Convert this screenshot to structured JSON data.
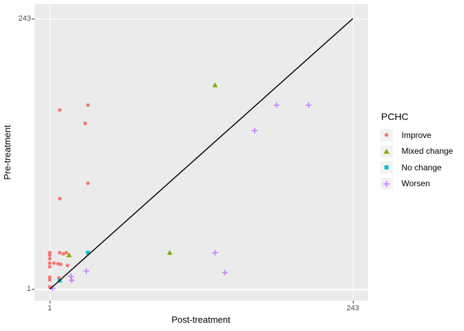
{
  "chart_data": {
    "type": "scatter",
    "title": "",
    "xlabel": "Post-treatment",
    "ylabel": "Pre-treatment",
    "legend_title": "PCHC",
    "legend_position": "right",
    "scale": "log",
    "x_ticks": [
      1,
      243
    ],
    "y_ticks": [
      1,
      243
    ],
    "xlim": [
      1,
      243
    ],
    "ylim": [
      1,
      243
    ],
    "grid": "major-on-white",
    "panel_bg": "#EBEBEB",
    "identity_line": {
      "from": [
        1,
        1
      ],
      "to": [
        243,
        243
      ],
      "color": "#000000"
    },
    "series": [
      {
        "name": "Improve",
        "marker": "circle",
        "color": "#F8766D",
        "points": [
          [
            1.2,
            38
          ],
          [
            2.0,
            42
          ],
          [
            1.9,
            29
          ],
          [
            2.0,
            8.6
          ],
          [
            1.2,
            6.3
          ],
          [
            1.0,
            2.1
          ],
          [
            1.0,
            2.0
          ],
          [
            1.0,
            1.86
          ],
          [
            1.2,
            2.1
          ],
          [
            1.28,
            2.05
          ],
          [
            1.35,
            2.1
          ],
          [
            1.0,
            1.7
          ],
          [
            1.0,
            1.58
          ],
          [
            1.08,
            1.7
          ],
          [
            1.16,
            1.68
          ],
          [
            1.22,
            1.66
          ],
          [
            1.38,
            1.62
          ],
          [
            1.0,
            1.28
          ],
          [
            1.0,
            1.21
          ],
          [
            1.18,
            1.26
          ],
          [
            1.0,
            1.05
          ]
        ]
      },
      {
        "name": "Mixed change",
        "marker": "triangle",
        "color": "#7CAE00",
        "points": [
          [
            20,
            63
          ],
          [
            8.8,
            2.1
          ],
          [
            1.42,
            2.0
          ]
        ]
      },
      {
        "name": "No change",
        "marker": "square",
        "color": "#00BFC4",
        "points": [
          [
            2.0,
            2.1
          ],
          [
            1.2,
            1.19
          ]
        ]
      },
      {
        "name": "Worsen",
        "marker": "plus",
        "color": "#C77CFF",
        "points": [
          [
            61,
            42
          ],
          [
            109,
            42
          ],
          [
            41,
            25
          ],
          [
            20,
            2.1
          ],
          [
            24,
            1.4
          ],
          [
            1.94,
            1.45
          ],
          [
            1.47,
            1.3
          ],
          [
            1.49,
            1.2
          ],
          [
            1.05,
            1.02
          ]
        ]
      }
    ]
  }
}
